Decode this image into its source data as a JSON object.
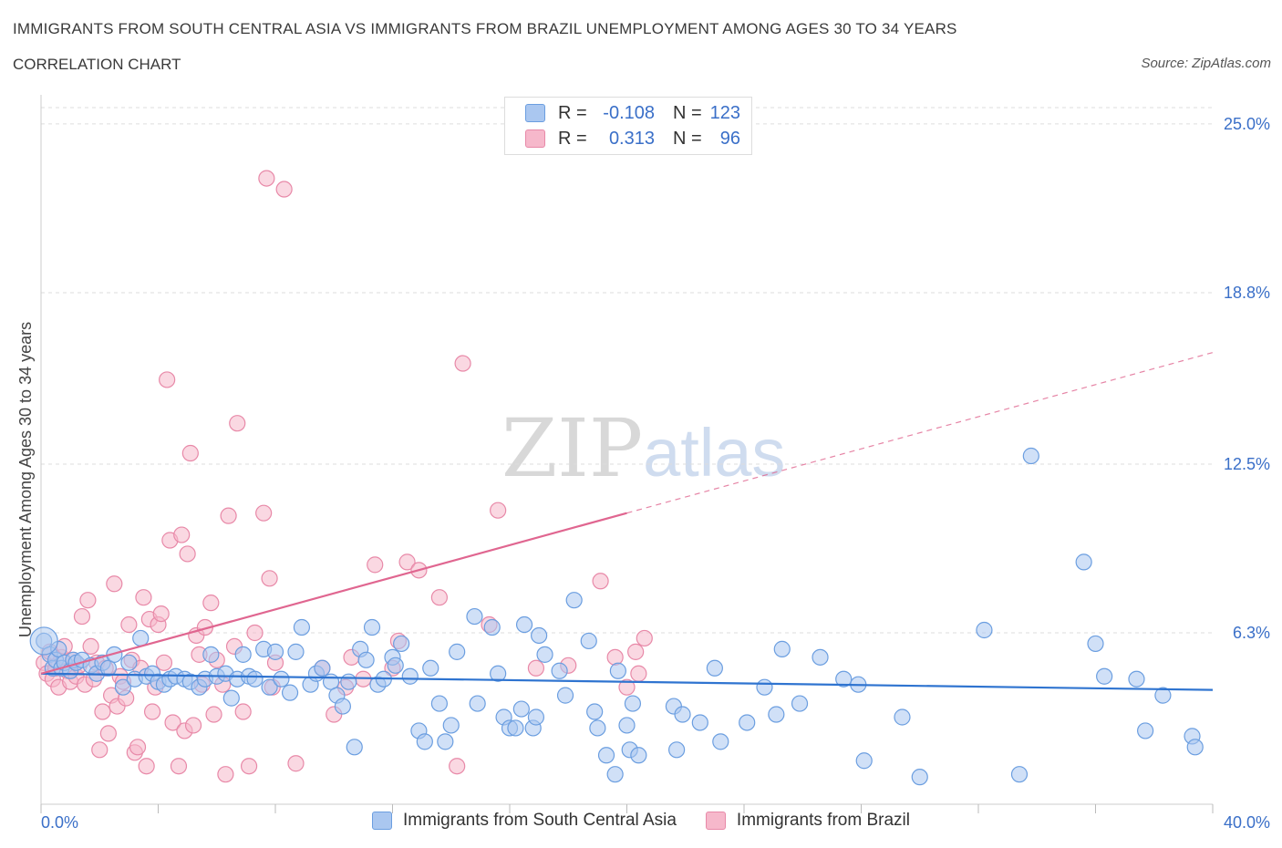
{
  "header": {
    "title": "IMMIGRANTS FROM SOUTH CENTRAL ASIA VS IMMIGRANTS FROM BRAZIL UNEMPLOYMENT AMONG AGES 30 TO 34 YEARS",
    "subtitle": "CORRELATION CHART",
    "source": "Source: ZipAtlas.com"
  },
  "watermark": {
    "zip": "ZIP",
    "atlas": "atlas"
  },
  "legend": {
    "rows": [
      {
        "r_label": "R =",
        "r_value": "-0.108",
        "n_label": "N =",
        "n_value": "123",
        "color": "#aac7f0"
      },
      {
        "r_label": "R =",
        "r_value": "0.313",
        "n_label": "N =",
        "n_value": "96",
        "color": "#f6b8cb"
      }
    ]
  },
  "bottom_legend": {
    "series_a": "Immigrants from South Central Asia",
    "series_b": "Immigrants from Brazil"
  },
  "colors": {
    "blue_fill": "#aac7f0",
    "blue_stroke": "#6b9ee0",
    "blue_line": "#2f74d0",
    "pink_fill": "#f6b8cb",
    "pink_stroke": "#e889a8",
    "pink_line": "#e06690",
    "axis_text": "#3a6fc8"
  },
  "chart_data": {
    "type": "scatter",
    "title": "IMMIGRANTS FROM SOUTH CENTRAL ASIA VS IMMIGRANTS FROM BRAZIL UNEMPLOYMENT AMONG AGES 30 TO 34 YEARS",
    "xlabel": "",
    "ylabel": "Unemployment Among Ages 30 to 34 years",
    "xlim": [
      0,
      40
    ],
    "ylim": [
      0,
      25.6
    ],
    "x_tick_labels": [
      "0.0%",
      "40.0%"
    ],
    "x_tick_label_values": [
      0,
      40
    ],
    "x_ticks": [
      0,
      4,
      8,
      12,
      16,
      20,
      24,
      28,
      32,
      36,
      40
    ],
    "y_ticks": [
      6.3,
      12.5,
      18.8,
      25.0
    ],
    "y_tick_labels": [
      "6.3%",
      "12.5%",
      "18.8%",
      "25.0%"
    ],
    "grid": "horizontal dashed",
    "legend_position": "top-center",
    "series": [
      {
        "name": "Immigrants from South Central Asia",
        "r": -0.108,
        "n": 123,
        "trend": {
          "x": [
            0,
            40
          ],
          "y": [
            4.8,
            4.2
          ]
        },
        "points": [
          [
            0.1,
            6.0
          ],
          [
            0.3,
            5.5
          ],
          [
            0.4,
            5.0
          ],
          [
            0.5,
            5.3
          ],
          [
            0.6,
            5.7
          ],
          [
            0.7,
            5.0
          ],
          [
            0.8,
            5.2
          ],
          [
            1.0,
            4.9
          ],
          [
            1.1,
            5.3
          ],
          [
            1.2,
            5.2
          ],
          [
            1.4,
            5.3
          ],
          [
            1.7,
            5.1
          ],
          [
            1.9,
            4.8
          ],
          [
            2.1,
            5.2
          ],
          [
            2.3,
            5.0
          ],
          [
            2.5,
            5.5
          ],
          [
            2.8,
            4.3
          ],
          [
            3.0,
            5.2
          ],
          [
            3.2,
            4.6
          ],
          [
            3.4,
            6.1
          ],
          [
            3.6,
            4.7
          ],
          [
            3.8,
            4.8
          ],
          [
            4.0,
            4.5
          ],
          [
            4.2,
            4.4
          ],
          [
            4.4,
            4.6
          ],
          [
            4.6,
            4.7
          ],
          [
            4.9,
            4.6
          ],
          [
            5.1,
            4.5
          ],
          [
            5.4,
            4.3
          ],
          [
            5.6,
            4.6
          ],
          [
            5.8,
            5.5
          ],
          [
            6.0,
            4.7
          ],
          [
            6.3,
            4.8
          ],
          [
            6.5,
            3.9
          ],
          [
            6.7,
            4.6
          ],
          [
            6.9,
            5.5
          ],
          [
            7.1,
            4.7
          ],
          [
            7.3,
            4.6
          ],
          [
            7.6,
            5.7
          ],
          [
            7.8,
            4.3
          ],
          [
            8.0,
            5.6
          ],
          [
            8.2,
            4.6
          ],
          [
            8.5,
            4.1
          ],
          [
            8.7,
            5.6
          ],
          [
            8.9,
            6.5
          ],
          [
            9.2,
            4.4
          ],
          [
            9.4,
            4.8
          ],
          [
            9.6,
            5.0
          ],
          [
            9.9,
            4.5
          ],
          [
            10.1,
            4.0
          ],
          [
            10.3,
            3.6
          ],
          [
            10.5,
            4.5
          ],
          [
            10.7,
            2.1
          ],
          [
            10.9,
            5.7
          ],
          [
            11.1,
            5.3
          ],
          [
            11.3,
            6.5
          ],
          [
            11.5,
            4.4
          ],
          [
            11.7,
            4.6
          ],
          [
            12.0,
            5.4
          ],
          [
            12.1,
            5.1
          ],
          [
            12.3,
            5.9
          ],
          [
            12.6,
            4.7
          ],
          [
            12.9,
            2.7
          ],
          [
            13.1,
            2.3
          ],
          [
            13.3,
            5.0
          ],
          [
            13.6,
            3.7
          ],
          [
            13.8,
            2.3
          ],
          [
            14.0,
            2.9
          ],
          [
            14.2,
            5.6
          ],
          [
            14.8,
            6.9
          ],
          [
            14.9,
            3.7
          ],
          [
            15.4,
            6.5
          ],
          [
            15.6,
            4.8
          ],
          [
            15.8,
            3.2
          ],
          [
            16.0,
            2.8
          ],
          [
            16.2,
            2.8
          ],
          [
            16.4,
            3.5
          ],
          [
            16.5,
            6.6
          ],
          [
            16.8,
            2.8
          ],
          [
            16.9,
            3.2
          ],
          [
            17.0,
            6.2
          ],
          [
            17.2,
            5.5
          ],
          [
            17.7,
            4.9
          ],
          [
            17.9,
            4.0
          ],
          [
            18.2,
            7.5
          ],
          [
            18.7,
            6.0
          ],
          [
            18.9,
            3.4
          ],
          [
            19.0,
            2.8
          ],
          [
            19.3,
            1.8
          ],
          [
            19.6,
            1.1
          ],
          [
            19.7,
            4.9
          ],
          [
            20.0,
            2.9
          ],
          [
            20.1,
            2.0
          ],
          [
            20.2,
            3.7
          ],
          [
            20.4,
            1.8
          ],
          [
            21.6,
            3.6
          ],
          [
            21.7,
            2.0
          ],
          [
            21.9,
            3.3
          ],
          [
            22.5,
            3.0
          ],
          [
            23.0,
            5.0
          ],
          [
            23.2,
            2.3
          ],
          [
            24.1,
            3.0
          ],
          [
            24.7,
            4.3
          ],
          [
            25.1,
            3.3
          ],
          [
            25.3,
            5.7
          ],
          [
            25.9,
            3.7
          ],
          [
            26.6,
            5.4
          ],
          [
            27.4,
            4.6
          ],
          [
            27.9,
            4.4
          ],
          [
            28.1,
            1.6
          ],
          [
            29.4,
            3.2
          ],
          [
            30.0,
            1.0
          ],
          [
            32.2,
            6.4
          ],
          [
            33.4,
            1.1
          ],
          [
            33.8,
            12.8
          ],
          [
            35.6,
            8.9
          ],
          [
            36.0,
            5.9
          ],
          [
            36.3,
            4.7
          ],
          [
            37.4,
            4.6
          ],
          [
            37.7,
            2.7
          ],
          [
            38.3,
            4.0
          ],
          [
            39.3,
            2.5
          ],
          [
            39.4,
            2.1
          ]
        ]
      },
      {
        "name": "Immigrants from Brazil",
        "r": 0.313,
        "n": 96,
        "trend": {
          "x": [
            0,
            20
          ],
          "y": [
            4.8,
            10.7
          ],
          "dashed_extension": {
            "x": [
              20,
              40
            ],
            "y": [
              10.7,
              16.6
            ]
          }
        },
        "points": [
          [
            0.1,
            5.2
          ],
          [
            0.2,
            4.8
          ],
          [
            0.3,
            5.6
          ],
          [
            0.4,
            4.6
          ],
          [
            0.5,
            5.0
          ],
          [
            0.6,
            4.3
          ],
          [
            0.7,
            5.4
          ],
          [
            0.8,
            5.8
          ],
          [
            0.9,
            4.9
          ],
          [
            1.0,
            4.5
          ],
          [
            1.1,
            5.3
          ],
          [
            1.2,
            4.7
          ],
          [
            1.3,
            5.1
          ],
          [
            1.4,
            6.9
          ],
          [
            1.5,
            4.4
          ],
          [
            1.6,
            7.5
          ],
          [
            1.7,
            5.8
          ],
          [
            1.8,
            4.6
          ],
          [
            1.9,
            5.2
          ],
          [
            2.0,
            2.0
          ],
          [
            2.1,
            3.4
          ],
          [
            2.2,
            5.0
          ],
          [
            2.3,
            2.6
          ],
          [
            2.4,
            4.0
          ],
          [
            2.5,
            8.1
          ],
          [
            2.6,
            3.6
          ],
          [
            2.7,
            4.7
          ],
          [
            2.8,
            4.5
          ],
          [
            2.9,
            3.9
          ],
          [
            3.0,
            6.6
          ],
          [
            3.1,
            5.3
          ],
          [
            3.2,
            1.9
          ],
          [
            3.3,
            2.1
          ],
          [
            3.4,
            5.0
          ],
          [
            3.5,
            7.6
          ],
          [
            3.6,
            1.4
          ],
          [
            3.7,
            6.8
          ],
          [
            3.8,
            3.4
          ],
          [
            3.9,
            4.3
          ],
          [
            4.0,
            6.6
          ],
          [
            4.1,
            7.0
          ],
          [
            4.2,
            5.2
          ],
          [
            4.3,
            15.6
          ],
          [
            4.4,
            9.7
          ],
          [
            4.5,
            3.0
          ],
          [
            4.7,
            1.4
          ],
          [
            4.8,
            9.9
          ],
          [
            4.9,
            2.7
          ],
          [
            5.0,
            9.2
          ],
          [
            5.1,
            12.9
          ],
          [
            5.2,
            2.9
          ],
          [
            5.3,
            6.2
          ],
          [
            5.4,
            5.5
          ],
          [
            5.5,
            4.4
          ],
          [
            5.6,
            6.5
          ],
          [
            5.8,
            7.4
          ],
          [
            5.9,
            3.3
          ],
          [
            6.0,
            5.3
          ],
          [
            6.2,
            4.4
          ],
          [
            6.3,
            1.1
          ],
          [
            6.4,
            10.6
          ],
          [
            6.6,
            5.8
          ],
          [
            6.7,
            14.0
          ],
          [
            6.9,
            3.4
          ],
          [
            7.1,
            1.4
          ],
          [
            7.3,
            6.3
          ],
          [
            7.6,
            10.7
          ],
          [
            7.8,
            8.3
          ],
          [
            7.9,
            4.3
          ],
          [
            8.0,
            5.2
          ],
          [
            7.7,
            23.0
          ],
          [
            8.3,
            22.6
          ],
          [
            8.7,
            1.5
          ],
          [
            9.6,
            5.0
          ],
          [
            10.0,
            3.3
          ],
          [
            10.4,
            4.3
          ],
          [
            10.6,
            5.4
          ],
          [
            11.0,
            4.6
          ],
          [
            11.4,
            8.8
          ],
          [
            12.0,
            5.0
          ],
          [
            12.2,
            6.0
          ],
          [
            12.5,
            8.9
          ],
          [
            12.9,
            8.6
          ],
          [
            13.6,
            7.6
          ],
          [
            14.2,
            1.4
          ],
          [
            14.4,
            16.2
          ],
          [
            15.3,
            6.6
          ],
          [
            15.6,
            10.8
          ],
          [
            16.9,
            5.0
          ],
          [
            18.0,
            5.1
          ],
          [
            19.1,
            8.2
          ],
          [
            19.6,
            5.4
          ],
          [
            20.0,
            4.3
          ],
          [
            20.3,
            5.6
          ],
          [
            20.4,
            4.8
          ],
          [
            20.6,
            6.1
          ]
        ]
      }
    ]
  }
}
